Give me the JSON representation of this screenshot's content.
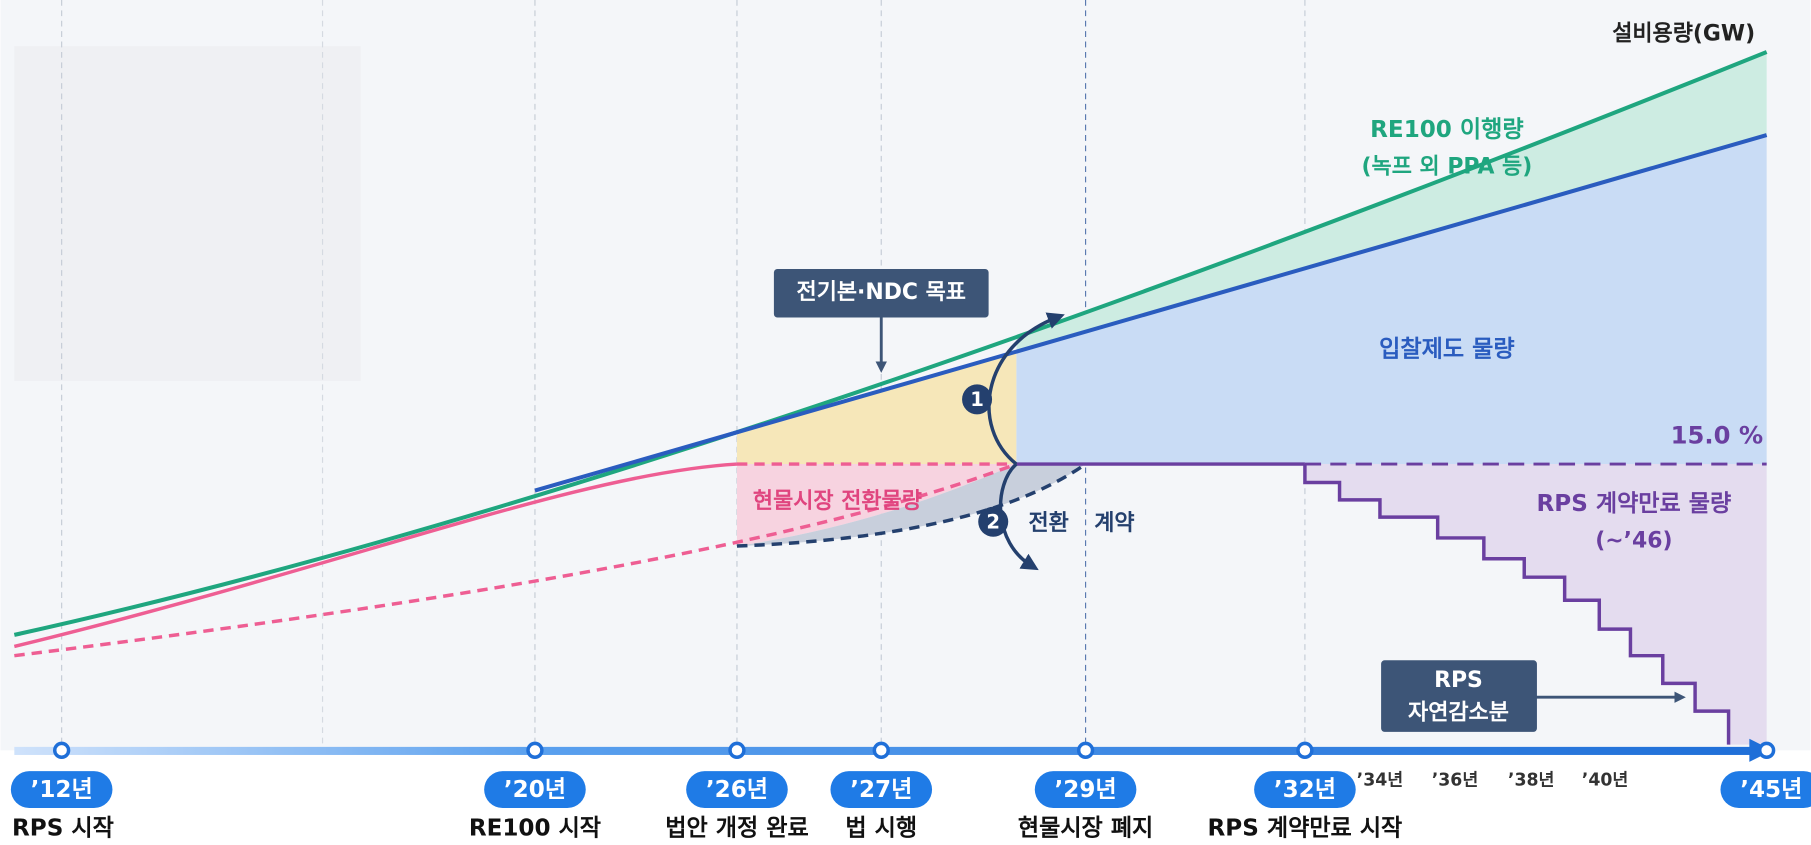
{
  "axis_label": "설비용량(GW)",
  "annotations": {
    "re100": "RE100 이행량",
    "re100_note": "(녹프 외 PPA 등)",
    "auction": "입찰제도 물량",
    "share": "15.0 %",
    "spot": "현물시장 전환물량",
    "marker1": "1",
    "marker2": "2",
    "switch": "전환",
    "contract": "계약",
    "rps_expiry": "RPS 계약만료 물량",
    "rps_expiry_note": "(~’46)"
  },
  "callouts": [
    {
      "lines": [
        "전기본·NDC 목표"
      ]
    },
    {
      "lines": [
        "RPS",
        "자연감소분"
      ]
    }
  ],
  "timeline": [
    {
      "year": "’12년",
      "event": "RPS 시작"
    },
    {
      "year": "’20년",
      "event": "RE100 시작"
    },
    {
      "year": "’26년",
      "event": "법안 개정 완료"
    },
    {
      "year": "’27년",
      "event": "법 시행"
    },
    {
      "year": "’29년",
      "event": "현물시장 폐지"
    },
    {
      "year": "’32년",
      "event": "RPS 계약만료 시작"
    },
    {
      "year": "’45년"
    }
  ],
  "minor_years": [
    "’34년",
    "’36년",
    "’38년",
    "’40년"
  ]
}
